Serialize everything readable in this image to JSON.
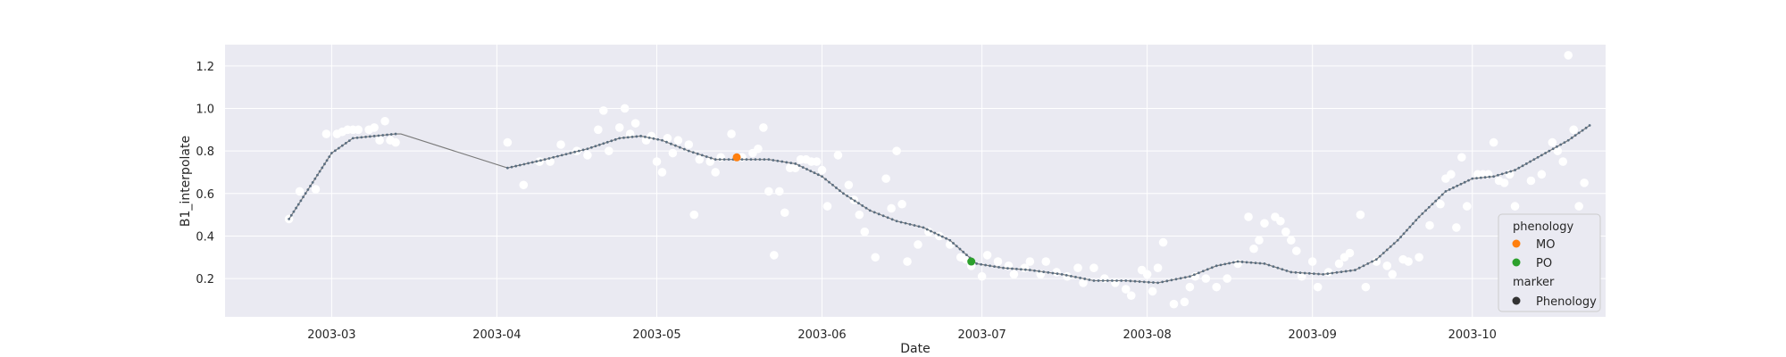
{
  "chart_data": {
    "type": "scatter",
    "title": "",
    "xlabel": "Date",
    "ylabel": "B1_interpolate",
    "x_tick_labels": [
      "2003-03",
      "2003-04",
      "2003-05",
      "2003-06",
      "2003-07",
      "2003-08",
      "2003-09",
      "2003-10"
    ],
    "x_ticks": [
      "2003-03-01",
      "2003-04-01",
      "2003-05-01",
      "2003-06-01",
      "2003-07-01",
      "2003-08-01",
      "2003-09-01",
      "2003-10-01"
    ],
    "xlim": [
      "2003-02-09",
      "2003-10-26"
    ],
    "y_tick_labels": [
      "0.2",
      "0.4",
      "0.6",
      "0.8",
      "1.0",
      "1.2"
    ],
    "y_ticks": [
      0.2,
      0.4,
      0.6,
      0.8,
      1.0,
      1.2
    ],
    "ylim": [
      0.02,
      1.3
    ],
    "grid": true,
    "background": "#eaeaf2",
    "legend_placement": "lower right",
    "legend": {
      "title1": "phenology",
      "entries": [
        {
          "label": "MO",
          "color": "#ff7f0e"
        },
        {
          "label": "PO",
          "color": "#2ca02c"
        }
      ],
      "title2": "marker",
      "marker_label": "Phenology",
      "marker_color": "#333333"
    },
    "series": [
      {
        "kind": "observations",
        "color": "#ffffff",
        "points": [
          [
            "2003-02-21",
            0.48
          ],
          [
            "2003-02-23",
            0.61
          ],
          [
            "2003-02-26",
            0.62
          ],
          [
            "2003-02-28",
            0.88
          ],
          [
            "2003-03-02",
            0.88
          ],
          [
            "2003-03-03",
            0.89
          ],
          [
            "2003-03-04",
            0.9
          ],
          [
            "2003-03-05",
            0.9
          ],
          [
            "2003-03-06",
            0.9
          ],
          [
            "2003-03-08",
            0.9
          ],
          [
            "2003-03-09",
            0.91
          ],
          [
            "2003-03-10",
            0.85
          ],
          [
            "2003-03-11",
            0.94
          ],
          [
            "2003-03-12",
            0.85
          ],
          [
            "2003-03-13",
            0.84
          ],
          [
            "2003-04-03",
            0.84
          ],
          [
            "2003-04-06",
            0.64
          ],
          [
            "2003-04-09",
            0.75
          ],
          [
            "2003-04-11",
            0.75
          ],
          [
            "2003-04-13",
            0.83
          ],
          [
            "2003-04-16",
            0.8
          ],
          [
            "2003-04-18",
            0.78
          ],
          [
            "2003-04-20",
            0.9
          ],
          [
            "2003-04-21",
            0.99
          ],
          [
            "2003-04-22",
            0.8
          ],
          [
            "2003-04-24",
            0.91
          ],
          [
            "2003-04-25",
            1.0
          ],
          [
            "2003-04-26",
            0.88
          ],
          [
            "2003-04-27",
            0.93
          ],
          [
            "2003-04-29",
            0.85
          ],
          [
            "2003-04-30",
            0.87
          ],
          [
            "2003-05-01",
            0.75
          ],
          [
            "2003-05-02",
            0.7
          ],
          [
            "2003-05-03",
            0.86
          ],
          [
            "2003-05-04",
            0.79
          ],
          [
            "2003-05-05",
            0.85
          ],
          [
            "2003-05-07",
            0.83
          ],
          [
            "2003-05-08",
            0.5
          ],
          [
            "2003-05-09",
            0.76
          ],
          [
            "2003-05-11",
            0.75
          ],
          [
            "2003-05-12",
            0.7
          ],
          [
            "2003-05-13",
            0.77
          ],
          [
            "2003-05-15",
            0.88
          ],
          [
            "2003-05-17",
            0.77
          ],
          [
            "2003-05-19",
            0.79
          ],
          [
            "2003-05-20",
            0.81
          ],
          [
            "2003-05-21",
            0.91
          ],
          [
            "2003-05-22",
            0.61
          ],
          [
            "2003-05-23",
            0.31
          ],
          [
            "2003-05-24",
            0.61
          ],
          [
            "2003-05-25",
            0.51
          ],
          [
            "2003-05-26",
            0.72
          ],
          [
            "2003-05-27",
            0.72
          ],
          [
            "2003-05-28",
            0.76
          ],
          [
            "2003-05-29",
            0.76
          ],
          [
            "2003-05-30",
            0.75
          ],
          [
            "2003-05-31",
            0.75
          ],
          [
            "2003-06-01",
            0.71
          ],
          [
            "2003-06-02",
            0.54
          ],
          [
            "2003-06-04",
            0.78
          ],
          [
            "2003-06-06",
            0.64
          ],
          [
            "2003-06-07",
            0.57
          ],
          [
            "2003-06-08",
            0.5
          ],
          [
            "2003-06-09",
            0.42
          ],
          [
            "2003-06-11",
            0.3
          ],
          [
            "2003-06-13",
            0.67
          ],
          [
            "2003-06-14",
            0.53
          ],
          [
            "2003-06-15",
            0.8
          ],
          [
            "2003-06-16",
            0.55
          ],
          [
            "2003-06-17",
            0.28
          ],
          [
            "2003-06-19",
            0.36
          ],
          [
            "2003-06-21",
            0.42
          ],
          [
            "2003-06-23",
            0.4
          ],
          [
            "2003-06-25",
            0.36
          ],
          [
            "2003-06-27",
            0.3
          ],
          [
            "2003-06-28",
            0.29
          ],
          [
            "2003-06-29",
            0.26
          ],
          [
            "2003-07-01",
            0.21
          ],
          [
            "2003-07-02",
            0.31
          ],
          [
            "2003-07-04",
            0.28
          ],
          [
            "2003-07-06",
            0.26
          ],
          [
            "2003-07-07",
            0.22
          ],
          [
            "2003-07-09",
            0.25
          ],
          [
            "2003-07-10",
            0.28
          ],
          [
            "2003-07-12",
            0.22
          ],
          [
            "2003-07-13",
            0.28
          ],
          [
            "2003-07-15",
            0.23
          ],
          [
            "2003-07-17",
            0.21
          ],
          [
            "2003-07-19",
            0.25
          ],
          [
            "2003-07-20",
            0.18
          ],
          [
            "2003-07-22",
            0.25
          ],
          [
            "2003-07-24",
            0.2
          ],
          [
            "2003-07-26",
            0.18
          ],
          [
            "2003-07-28",
            0.15
          ],
          [
            "2003-07-29",
            0.12
          ],
          [
            "2003-07-31",
            0.24
          ],
          [
            "2003-08-01",
            0.22
          ],
          [
            "2003-08-02",
            0.14
          ],
          [
            "2003-08-03",
            0.25
          ],
          [
            "2003-08-04",
            0.37
          ],
          [
            "2003-08-06",
            0.08
          ],
          [
            "2003-08-08",
            0.09
          ],
          [
            "2003-08-09",
            0.16
          ],
          [
            "2003-08-10",
            0.21
          ],
          [
            "2003-08-12",
            0.2
          ],
          [
            "2003-08-14",
            0.16
          ],
          [
            "2003-08-16",
            0.2
          ],
          [
            "2003-08-18",
            0.27
          ],
          [
            "2003-08-20",
            0.49
          ],
          [
            "2003-08-21",
            0.34
          ],
          [
            "2003-08-22",
            0.38
          ],
          [
            "2003-08-23",
            0.46
          ],
          [
            "2003-08-25",
            0.49
          ],
          [
            "2003-08-26",
            0.47
          ],
          [
            "2003-08-27",
            0.42
          ],
          [
            "2003-08-28",
            0.38
          ],
          [
            "2003-08-29",
            0.33
          ],
          [
            "2003-08-30",
            0.21
          ],
          [
            "2003-09-01",
            0.28
          ],
          [
            "2003-09-02",
            0.16
          ],
          [
            "2003-09-04",
            0.23
          ],
          [
            "2003-09-06",
            0.27
          ],
          [
            "2003-09-07",
            0.3
          ],
          [
            "2003-09-08",
            0.32
          ],
          [
            "2003-09-10",
            0.5
          ],
          [
            "2003-09-11",
            0.16
          ],
          [
            "2003-09-13",
            0.28
          ],
          [
            "2003-09-15",
            0.26
          ],
          [
            "2003-09-16",
            0.22
          ],
          [
            "2003-09-18",
            0.29
          ],
          [
            "2003-09-19",
            0.28
          ],
          [
            "2003-09-21",
            0.3
          ],
          [
            "2003-09-23",
            0.45
          ],
          [
            "2003-09-25",
            0.55
          ],
          [
            "2003-09-26",
            0.67
          ],
          [
            "2003-09-27",
            0.69
          ],
          [
            "2003-09-28",
            0.44
          ],
          [
            "2003-09-29",
            0.77
          ],
          [
            "2003-09-30",
            0.54
          ],
          [
            "2003-10-02",
            0.69
          ],
          [
            "2003-10-03",
            0.69
          ],
          [
            "2003-10-04",
            0.69
          ],
          [
            "2003-10-05",
            0.84
          ],
          [
            "2003-10-06",
            0.66
          ],
          [
            "2003-10-07",
            0.65
          ],
          [
            "2003-10-08",
            0.69
          ],
          [
            "2003-10-09",
            0.54
          ],
          [
            "2003-10-10",
            0.44
          ],
          [
            "2003-10-12",
            0.66
          ],
          [
            "2003-10-14",
            0.69
          ],
          [
            "2003-10-16",
            0.84
          ],
          [
            "2003-10-17",
            0.8
          ],
          [
            "2003-10-18",
            0.75
          ],
          [
            "2003-10-19",
            1.25
          ],
          [
            "2003-10-20",
            0.9
          ],
          [
            "2003-10-21",
            0.54
          ],
          [
            "2003-10-22",
            0.65
          ]
        ]
      },
      {
        "kind": "interpolated",
        "color": "#5a6e80",
        "points": [
          [
            "2003-02-21",
            0.48
          ],
          [
            "2003-03-01",
            0.79
          ],
          [
            "2003-03-05",
            0.86
          ],
          [
            "2003-03-09",
            0.87
          ],
          [
            "2003-03-13",
            0.88
          ],
          [
            "2003-03-14",
            0.88
          ],
          [
            "2003-04-03",
            0.72
          ],
          [
            "2003-04-10",
            0.76
          ],
          [
            "2003-04-18",
            0.81
          ],
          [
            "2003-04-24",
            0.86
          ],
          [
            "2003-04-28",
            0.87
          ],
          [
            "2003-05-02",
            0.85
          ],
          [
            "2003-05-07",
            0.8
          ],
          [
            "2003-05-12",
            0.76
          ],
          [
            "2003-05-17",
            0.76
          ],
          [
            "2003-05-22",
            0.76
          ],
          [
            "2003-05-27",
            0.74
          ],
          [
            "2003-06-01",
            0.68
          ],
          [
            "2003-06-05",
            0.6
          ],
          [
            "2003-06-10",
            0.52
          ],
          [
            "2003-06-15",
            0.47
          ],
          [
            "2003-06-20",
            0.44
          ],
          [
            "2003-06-25",
            0.38
          ],
          [
            "2003-06-30",
            0.27
          ],
          [
            "2003-07-05",
            0.25
          ],
          [
            "2003-07-10",
            0.24
          ],
          [
            "2003-07-16",
            0.22
          ],
          [
            "2003-07-22",
            0.19
          ],
          [
            "2003-07-28",
            0.19
          ],
          [
            "2003-08-03",
            0.18
          ],
          [
            "2003-08-09",
            0.21
          ],
          [
            "2003-08-14",
            0.26
          ],
          [
            "2003-08-18",
            0.28
          ],
          [
            "2003-08-23",
            0.27
          ],
          [
            "2003-08-28",
            0.23
          ],
          [
            "2003-09-03",
            0.22
          ],
          [
            "2003-09-09",
            0.24
          ],
          [
            "2003-09-13",
            0.29
          ],
          [
            "2003-09-17",
            0.38
          ],
          [
            "2003-09-21",
            0.49
          ],
          [
            "2003-09-26",
            0.61
          ],
          [
            "2003-10-01",
            0.67
          ],
          [
            "2003-10-05",
            0.68
          ],
          [
            "2003-10-09",
            0.71
          ],
          [
            "2003-10-14",
            0.78
          ],
          [
            "2003-10-19",
            0.85
          ],
          [
            "2003-10-23",
            0.92
          ]
        ]
      },
      {
        "kind": "phenology",
        "points": [
          {
            "label": "MO",
            "x": "2003-05-16",
            "y": 0.77,
            "color": "#ff7f0e"
          },
          {
            "label": "PO",
            "x": "2003-06-29",
            "y": 0.28,
            "color": "#2ca02c"
          }
        ]
      }
    ]
  }
}
